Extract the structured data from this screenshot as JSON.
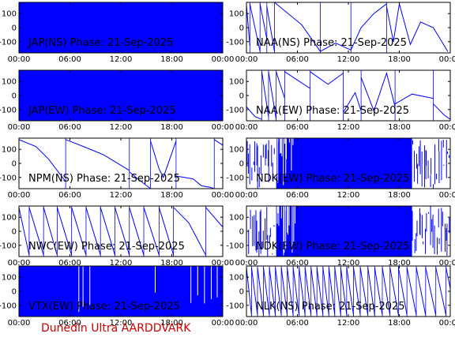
{
  "footer": "Dunedin Ultra AARDDVARK",
  "colors": {
    "trace": "#0000ff",
    "axis": "#000000",
    "footer": "#cc0000",
    "background": "#ffffff"
  },
  "chart_data": [
    {
      "type": "line",
      "title": "JAP(NS) Phase: 21-Sep-2025",
      "xlim": [
        0,
        24
      ],
      "ylim": [
        -180,
        180
      ],
      "xticks": [
        "00:00",
        "06:00",
        "12:00",
        "18:00",
        "00:00"
      ],
      "yticks": [
        "100",
        "0",
        "-100"
      ],
      "style": "dense",
      "density": 1.0,
      "gaps": []
    },
    {
      "type": "line",
      "title": "NAA(NS) Phase: 21-Sep-2025",
      "xlim": [
        0,
        24
      ],
      "ylim": [
        -180,
        180
      ],
      "xticks": [
        "00:00",
        "06:00",
        "12:00",
        "18:00",
        "00:00"
      ],
      "yticks": [
        "100",
        "0",
        "-100"
      ],
      "style": "wrap",
      "segments": [
        {
          "x": [
            0.0,
            0.4
          ],
          "y": [
            160,
            -130
          ]
        },
        {
          "x": [
            0.4,
            1.6
          ],
          "y": [
            170,
            -170
          ]
        },
        {
          "x": [
            1.6,
            2.4
          ],
          "y": [
            170,
            -80
          ]
        },
        {
          "x": [
            2.4,
            3.3
          ],
          "y": [
            150,
            -170
          ]
        },
        {
          "x": [
            3.3,
            6.5,
            8.7
          ],
          "y": [
            180,
            20,
            -170
          ]
        },
        {
          "x": [
            8.7,
            10.5,
            12.3
          ],
          "y": [
            -170,
            -110,
            -160
          ]
        },
        {
          "x": [
            12.3,
            13.5,
            15.0,
            16.5
          ],
          "y": [
            -160,
            0,
            100,
            170
          ]
        },
        {
          "x": [
            16.5,
            17.3,
            18.0,
            19.3,
            20.5,
            22.0,
            23.2,
            23.7
          ],
          "y": [
            150,
            -100,
            170,
            -120,
            40,
            0,
            -120,
            -170
          ]
        }
      ]
    },
    {
      "type": "line",
      "title": "JAP(EW) Phase: 21-Sep-2025",
      "xlim": [
        0,
        24
      ],
      "ylim": [
        -180,
        180
      ],
      "xticks": [
        "00:00",
        "06:00",
        "12:00",
        "18:00",
        "00:00"
      ],
      "yticks": [
        "100",
        "0",
        "-100"
      ],
      "style": "dense",
      "density": 1.0,
      "gaps": []
    },
    {
      "type": "line",
      "title": "NAA(EW) Phase: 21-Sep-2025",
      "xlim": [
        0,
        24
      ],
      "ylim": [
        -180,
        180
      ],
      "xticks": [
        "00:00",
        "06:00",
        "12:00",
        "18:00",
        "00:00"
      ],
      "yticks": [
        "100",
        "0",
        "-100"
      ],
      "style": "wrap",
      "segments": [
        {
          "x": [
            0.0,
            1.0,
            1.8
          ],
          "y": [
            -80,
            -150,
            -170
          ]
        },
        {
          "x": [
            1.8,
            2.6
          ],
          "y": [
            170,
            -150
          ]
        },
        {
          "x": [
            2.6,
            3.5
          ],
          "y": [
            170,
            -170
          ]
        },
        {
          "x": [
            3.5,
            4.5
          ],
          "y": [
            170,
            -20
          ]
        },
        {
          "x": [
            4.5,
            7.5
          ],
          "y": [
            170,
            50
          ]
        },
        {
          "x": [
            7.5,
            9.6,
            11.4
          ],
          "y": [
            170,
            80,
            160
          ]
        },
        {
          "x": [
            11.4,
            12.8,
            13.5
          ],
          "y": [
            -120,
            20,
            -110
          ]
        },
        {
          "x": [
            13.5,
            15.0,
            16.5,
            17.5
          ],
          "y": [
            130,
            -110,
            160,
            -80
          ]
        },
        {
          "x": [
            17.5,
            19.5,
            22.0
          ],
          "y": [
            -60,
            10,
            -20
          ]
        },
        {
          "x": [
            22.0,
            23.3,
            24.0
          ],
          "y": [
            -60,
            -140,
            -170
          ]
        }
      ]
    },
    {
      "type": "line",
      "title": "NPM(NS) Phase: 21-Sep-2025",
      "xlim": [
        0,
        24
      ],
      "ylim": [
        -180,
        180
      ],
      "xticks": [
        "00:00",
        "06:00",
        "12:00",
        "18:00",
        "00:00"
      ],
      "yticks": [
        "100",
        "0",
        "-100"
      ],
      "style": "wrap",
      "segments": [
        {
          "x": [
            0.0,
            2.0,
            3.5,
            5.5
          ],
          "y": [
            170,
            120,
            30,
            -130
          ]
        },
        {
          "x": [
            5.5,
            8.0,
            10.0,
            13.0
          ],
          "y": [
            170,
            110,
            60,
            -50
          ]
        },
        {
          "x": [
            13.0,
            14.0,
            15.5
          ],
          "y": [
            -60,
            -110,
            -180
          ]
        },
        {
          "x": [
            15.5,
            16.5,
            17.0,
            18.5
          ],
          "y": [
            160,
            -40,
            -100,
            160
          ]
        },
        {
          "x": [
            18.5,
            20.5,
            21.5,
            22.5,
            23.0
          ],
          "y": [
            -90,
            -110,
            -160,
            -170,
            -180
          ]
        },
        {
          "x": [
            23.0,
            24.0
          ],
          "y": [
            170,
            130
          ]
        }
      ]
    },
    {
      "type": "line",
      "title": "NDK(EW) Phase: 21-Sep-2025",
      "xlim": [
        0,
        24
      ],
      "ylim": [
        -180,
        180
      ],
      "xticks": [
        "00:00",
        "06:00",
        "12:00",
        "18:00",
        "00:00"
      ],
      "yticks": [
        "100",
        "0",
        "-100"
      ],
      "style": "dense",
      "density": 0.9,
      "gaps": [
        [
          0,
          3.5
        ],
        [
          19.5,
          24
        ]
      ]
    },
    {
      "type": "line",
      "title": "NWC(EW) Phase: 21-Sep-2025",
      "xlim": [
        0,
        24
      ],
      "ylim": [
        -180,
        180
      ],
      "xticks": [
        "00:00",
        "06:00",
        "12:00",
        "18:00",
        "00:00"
      ],
      "yticks": [
        "100",
        "0",
        "-100"
      ],
      "style": "wrap",
      "segments": [
        {
          "x": [
            0.0,
            1.2
          ],
          "y": [
            170,
            -170
          ]
        },
        {
          "x": [
            1.2,
            2.9
          ],
          "y": [
            170,
            -170
          ]
        },
        {
          "x": [
            2.9,
            4.5
          ],
          "y": [
            170,
            -170
          ]
        },
        {
          "x": [
            4.5,
            6.2
          ],
          "y": [
            170,
            -170
          ]
        },
        {
          "x": [
            6.2,
            7.9
          ],
          "y": [
            170,
            -170
          ]
        },
        {
          "x": [
            7.9,
            9.6
          ],
          "y": [
            170,
            -170
          ]
        },
        {
          "x": [
            9.6,
            11.3
          ],
          "y": [
            170,
            -170
          ]
        },
        {
          "x": [
            11.3,
            13.0
          ],
          "y": [
            170,
            -170
          ]
        },
        {
          "x": [
            13.0,
            14.7
          ],
          "y": [
            170,
            -170
          ]
        },
        {
          "x": [
            14.7,
            16.5
          ],
          "y": [
            170,
            -170
          ]
        },
        {
          "x": [
            16.5,
            18.2
          ],
          "y": [
            170,
            -170
          ]
        },
        {
          "x": [
            18.2,
            20.0,
            22.0
          ],
          "y": [
            170,
            60,
            -170
          ]
        },
        {
          "x": [
            22.0,
            24.0
          ],
          "y": [
            170,
            30
          ]
        }
      ]
    },
    {
      "type": "line",
      "title": "NDK(EW) Phase: 21-Sep-2025",
      "xlim": [
        0,
        24
      ],
      "ylim": [
        -180,
        180
      ],
      "xticks": [
        "00:00",
        "06:00",
        "12:00",
        "18:00",
        "00:00"
      ],
      "yticks": [
        "100",
        "0",
        "-100"
      ],
      "style": "dense",
      "density": 0.9,
      "gaps": [
        [
          0,
          3.5
        ],
        [
          19.5,
          24
        ]
      ]
    },
    {
      "type": "line",
      "title": "VTX(EW) Phase: 21-Sep-2025",
      "xlim": [
        0,
        24
      ],
      "ylim": [
        -180,
        180
      ],
      "xticks": [
        "00:00",
        "06:00",
        "12:00",
        "18:00",
        "00:00"
      ],
      "yticks": [
        "100",
        "0",
        "-100"
      ],
      "style": "dense",
      "density": 1.0,
      "gaps": [
        [
          7.0,
          7.1
        ],
        [
          7.5,
          7.55
        ],
        [
          8.3,
          8.35
        ],
        [
          16.0,
          16.05
        ],
        [
          20.2,
          20.25
        ],
        [
          21.0,
          21.1
        ],
        [
          21.8,
          21.85
        ],
        [
          22.6,
          22.7
        ],
        [
          23.3,
          23.35
        ]
      ]
    },
    {
      "type": "line",
      "title": "NLK(NS) Phase: 21-Sep-2025",
      "xlim": [
        0,
        24
      ],
      "ylim": [
        -180,
        180
      ],
      "xticks": [
        "00:00",
        "06:00",
        "12:00",
        "18:00",
        "00:00"
      ],
      "yticks": [
        "100",
        "0",
        "-100"
      ],
      "style": "wrap",
      "segments": [
        {
          "x": [
            0.0,
            0.6
          ],
          "y": [
            170,
            -170
          ]
        },
        {
          "x": [
            0.6,
            1.3
          ],
          "y": [
            170,
            -170
          ]
        },
        {
          "x": [
            1.3,
            2.0
          ],
          "y": [
            170,
            -170
          ]
        },
        {
          "x": [
            2.0,
            2.7
          ],
          "y": [
            170,
            -170
          ]
        },
        {
          "x": [
            2.7,
            3.4
          ],
          "y": [
            170,
            -170
          ]
        },
        {
          "x": [
            3.4,
            4.1
          ],
          "y": [
            170,
            -170
          ]
        },
        {
          "x": [
            4.1,
            4.8
          ],
          "y": [
            170,
            -170
          ]
        },
        {
          "x": [
            4.8,
            5.5
          ],
          "y": [
            170,
            -170
          ]
        },
        {
          "x": [
            5.5,
            6.2
          ],
          "y": [
            170,
            -170
          ]
        },
        {
          "x": [
            6.2,
            6.9
          ],
          "y": [
            170,
            -170
          ]
        },
        {
          "x": [
            6.9,
            7.6
          ],
          "y": [
            170,
            -170
          ]
        },
        {
          "x": [
            7.6,
            8.3
          ],
          "y": [
            170,
            -170
          ]
        },
        {
          "x": [
            8.3,
            9.0
          ],
          "y": [
            170,
            -170
          ]
        },
        {
          "x": [
            9.0,
            9.7
          ],
          "y": [
            170,
            -170
          ]
        },
        {
          "x": [
            9.7,
            10.4
          ],
          "y": [
            170,
            -170
          ]
        },
        {
          "x": [
            10.4,
            11.1
          ],
          "y": [
            170,
            -170
          ]
        },
        {
          "x": [
            11.1,
            11.8
          ],
          "y": [
            170,
            -170
          ]
        },
        {
          "x": [
            11.8,
            12.6
          ],
          "y": [
            170,
            -170
          ]
        },
        {
          "x": [
            12.6,
            13.4
          ],
          "y": [
            170,
            -170
          ]
        },
        {
          "x": [
            13.4,
            14.3
          ],
          "y": [
            170,
            -170
          ]
        },
        {
          "x": [
            14.3,
            15.1
          ],
          "y": [
            170,
            -170
          ]
        },
        {
          "x": [
            15.1,
            16.0
          ],
          "y": [
            170,
            -170
          ]
        },
        {
          "x": [
            16.0,
            16.9
          ],
          "y": [
            170,
            -170
          ]
        },
        {
          "x": [
            16.9,
            17.9
          ],
          "y": [
            170,
            -170
          ]
        },
        {
          "x": [
            17.9,
            18.9
          ],
          "y": [
            170,
            -170
          ]
        },
        {
          "x": [
            18.9,
            20.0
          ],
          "y": [
            170,
            -170
          ]
        },
        {
          "x": [
            20.0,
            21.1
          ],
          "y": [
            170,
            -170
          ]
        },
        {
          "x": [
            21.1,
            22.3
          ],
          "y": [
            170,
            -170
          ]
        },
        {
          "x": [
            22.3,
            23.5
          ],
          "y": [
            170,
            -170
          ]
        },
        {
          "x": [
            23.5,
            24.0
          ],
          "y": [
            170,
            20
          ]
        }
      ]
    }
  ]
}
